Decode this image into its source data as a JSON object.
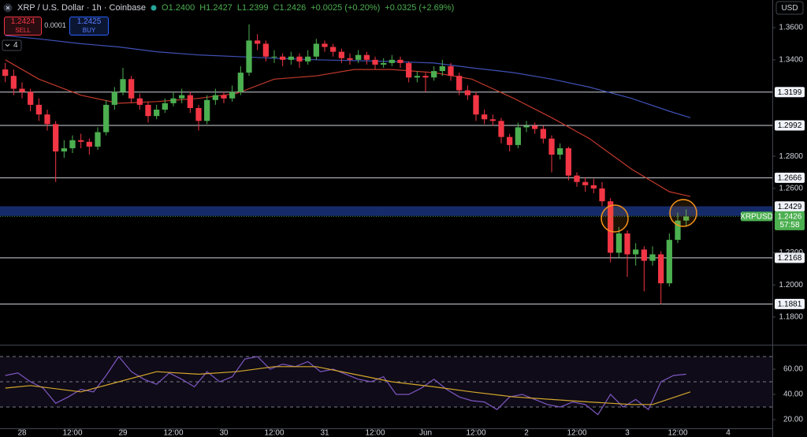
{
  "header": {
    "title": "XRP / U.S. Dollar · 1h · Coinbase",
    "open": "O1.2400",
    "high": "H1.2427",
    "low": "L1.2399",
    "close": "C1.2426",
    "change": "+0.0025 (+0.20%)",
    "change_day": "+0.0325 (+2.69%)"
  },
  "trade": {
    "sell_price": "1.2424",
    "sell": "SELL",
    "spread": "0.0001",
    "buy_price": "1.2425",
    "buy": "BUY"
  },
  "indicators_count": "4",
  "currency": "USD",
  "chart_data": [
    {
      "type": "candlestick",
      "x": [
        -4,
        -2,
        0,
        2,
        4,
        6,
        8,
        10,
        12,
        14,
        16,
        18,
        20,
        22,
        24,
        26,
        28,
        30,
        32,
        34,
        36,
        38,
        40,
        42,
        44,
        46,
        48,
        50,
        52,
        54,
        56,
        58,
        60,
        62,
        64,
        66,
        68,
        70,
        72,
        74,
        76,
        78,
        80,
        82,
        84,
        86,
        88,
        90,
        92,
        94,
        96,
        98,
        100,
        102,
        104,
        106,
        108,
        110,
        112,
        114,
        116,
        118,
        120,
        122,
        124,
        126,
        128,
        130,
        132,
        134,
        136,
        138,
        140,
        142,
        144,
        146,
        148,
        150,
        152,
        154,
        156,
        158
      ],
      "ohlc": [
        [
          1.334,
          1.338,
          1.326,
          1.33
        ],
        [
          1.33,
          1.334,
          1.318,
          1.322
        ],
        [
          1.322,
          1.326,
          1.316,
          1.32
        ],
        [
          1.32,
          1.322,
          1.308,
          1.312
        ],
        [
          1.312,
          1.316,
          1.302,
          1.306
        ],
        [
          1.306,
          1.309,
          1.296,
          1.3
        ],
        [
          1.3,
          1.302,
          1.264,
          1.283
        ],
        [
          1.283,
          1.29,
          1.279,
          1.285
        ],
        [
          1.285,
          1.293,
          1.282,
          1.29
        ],
        [
          1.29,
          1.294,
          1.285,
          1.289
        ],
        [
          1.289,
          1.291,
          1.281,
          1.286
        ],
        [
          1.286,
          1.298,
          1.284,
          1.295
        ],
        [
          1.295,
          1.315,
          1.293,
          1.312
        ],
        [
          1.312,
          1.323,
          1.309,
          1.32
        ],
        [
          1.32,
          1.335,
          1.318,
          1.328
        ],
        [
          1.328,
          1.33,
          1.313,
          1.316
        ],
        [
          1.316,
          1.319,
          1.309,
          1.312
        ],
        [
          1.312,
          1.314,
          1.301,
          1.305
        ],
        [
          1.305,
          1.312,
          1.303,
          1.309
        ],
        [
          1.309,
          1.316,
          1.307,
          1.313
        ],
        [
          1.313,
          1.32,
          1.311,
          1.316
        ],
        [
          1.316,
          1.322,
          1.313,
          1.318
        ],
        [
          1.318,
          1.32,
          1.307,
          1.31
        ],
        [
          1.31,
          1.312,
          1.296,
          1.302
        ],
        [
          1.302,
          1.318,
          1.3,
          1.315
        ],
        [
          1.315,
          1.322,
          1.312,
          1.318
        ],
        [
          1.318,
          1.32,
          1.313,
          1.316
        ],
        [
          1.316,
          1.324,
          1.314,
          1.32
        ],
        [
          1.32,
          1.336,
          1.318,
          1.332
        ],
        [
          1.332,
          1.362,
          1.33,
          1.352
        ],
        [
          1.352,
          1.356,
          1.346,
          1.35
        ],
        [
          1.35,
          1.352,
          1.339,
          1.342
        ],
        [
          1.342,
          1.346,
          1.338,
          1.342
        ],
        [
          1.342,
          1.344,
          1.336,
          1.34
        ],
        [
          1.34,
          1.345,
          1.337,
          1.342
        ],
        [
          1.342,
          1.344,
          1.335,
          1.339
        ],
        [
          1.339,
          1.346,
          1.337,
          1.342
        ],
        [
          1.342,
          1.353,
          1.34,
          1.35
        ],
        [
          1.35,
          1.352,
          1.345,
          1.348
        ],
        [
          1.348,
          1.35,
          1.342,
          1.345
        ],
        [
          1.345,
          1.347,
          1.338,
          1.341
        ],
        [
          1.341,
          1.344,
          1.337,
          1.34
        ],
        [
          1.34,
          1.346,
          1.338,
          1.343
        ],
        [
          1.343,
          1.345,
          1.337,
          1.34
        ],
        [
          1.34,
          1.342,
          1.334,
          1.337
        ],
        [
          1.337,
          1.341,
          1.335,
          1.338
        ],
        [
          1.338,
          1.343,
          1.336,
          1.34
        ],
        [
          1.34,
          1.342,
          1.335,
          1.338
        ],
        [
          1.338,
          1.339,
          1.326,
          1.329
        ],
        [
          1.329,
          1.333,
          1.326,
          1.33
        ],
        [
          1.33,
          1.332,
          1.32,
          1.329
        ],
        [
          1.329,
          1.336,
          1.327,
          1.333
        ],
        [
          1.333,
          1.34,
          1.33,
          1.336
        ],
        [
          1.336,
          1.338,
          1.327,
          1.33
        ],
        [
          1.33,
          1.332,
          1.318,
          1.321
        ],
        [
          1.321,
          1.324,
          1.315,
          1.318
        ],
        [
          1.318,
          1.32,
          1.302,
          1.306
        ],
        [
          1.306,
          1.309,
          1.3,
          1.303
        ],
        [
          1.303,
          1.306,
          1.299,
          1.302
        ],
        [
          1.302,
          1.304,
          1.288,
          1.292
        ],
        [
          1.292,
          1.294,
          1.283,
          1.287
        ],
        [
          1.287,
          1.301,
          1.285,
          1.298
        ],
        [
          1.298,
          1.302,
          1.295,
          1.299
        ],
        [
          1.299,
          1.301,
          1.294,
          1.297
        ],
        [
          1.297,
          1.299,
          1.288,
          1.291
        ],
        [
          1.291,
          1.293,
          1.27,
          1.281
        ],
        [
          1.281,
          1.288,
          1.278,
          1.285
        ],
        [
          1.285,
          1.286,
          1.265,
          1.268
        ],
        [
          1.268,
          1.27,
          1.261,
          1.264
        ],
        [
          1.264,
          1.267,
          1.258,
          1.262
        ],
        [
          1.262,
          1.266,
          1.257,
          1.26
        ],
        [
          1.26,
          1.264,
          1.249,
          1.252
        ],
        [
          1.252,
          1.254,
          1.214,
          1.22
        ],
        [
          1.22,
          1.236,
          1.217,
          1.232
        ],
        [
          1.232,
          1.234,
          1.205,
          1.219
        ],
        [
          1.219,
          1.226,
          1.212,
          1.222
        ],
        [
          1.222,
          1.224,
          1.196,
          1.215
        ],
        [
          1.215,
          1.224,
          1.212,
          1.219
        ],
        [
          1.219,
          1.221,
          1.188,
          1.201
        ],
        [
          1.201,
          1.232,
          1.199,
          1.228
        ],
        [
          1.228,
          1.245,
          1.226,
          1.24
        ],
        [
          1.24,
          1.247,
          1.236,
          1.2426
        ]
      ],
      "up_color": "#4caf50",
      "down_color": "#f23645",
      "xlim": [
        -5.25,
        178.5
      ],
      "xticks": [
        {
          "value": 0,
          "label": "28"
        },
        {
          "value": 12,
          "label": "12:00"
        },
        {
          "value": 24,
          "label": "29"
        },
        {
          "value": 36,
          "label": "12:00"
        },
        {
          "value": 48,
          "label": "30"
        },
        {
          "value": 60,
          "label": "12:00"
        },
        {
          "value": 72,
          "label": "31"
        },
        {
          "value": 84,
          "label": "12:00"
        },
        {
          "value": 96,
          "label": "Jun"
        },
        {
          "value": 108,
          "label": "12:00"
        },
        {
          "value": 120,
          "label": "2"
        },
        {
          "value": 132,
          "label": "12:00"
        },
        {
          "value": 144,
          "label": "3"
        },
        {
          "value": 156,
          "label": "12:00"
        },
        {
          "value": 168,
          "label": "4"
        }
      ],
      "ylim": [
        1.1628,
        1.3772
      ],
      "yticks": [
        {
          "value": 1.36,
          "label": "1.3600"
        },
        {
          "value": 1.34,
          "label": "1.3400"
        },
        {
          "value": 1.28,
          "label": "1.2800"
        },
        {
          "value": 1.26,
          "label": "1.2600"
        },
        {
          "value": 1.22,
          "label": "1.2200"
        },
        {
          "value": 1.2,
          "label": "1.2000"
        },
        {
          "value": 1.18,
          "label": "1.1800"
        }
      ],
      "levels": [
        1.3199,
        1.2992,
        1.2666,
        1.2168,
        1.1881
      ],
      "zone": {
        "low": 1.2429,
        "high": 1.2489,
        "color": "#1c3a8c"
      },
      "series": [
        {
          "color": "#c0392b",
          "x": [
            -4,
            4,
            14,
            23,
            32,
            42,
            51,
            60,
            70,
            79,
            88,
            98,
            107,
            117,
            126,
            135,
            145,
            154,
            159
          ],
          "values": [
            1.34,
            1.328,
            1.318,
            1.313,
            1.314,
            1.316,
            1.319,
            1.328,
            1.33,
            1.334,
            1.334,
            1.332,
            1.328,
            1.316,
            1.304,
            1.291,
            1.272,
            1.258,
            1.255
          ]
        },
        {
          "color": "#3f51b5",
          "x": [
            -4,
            4,
            14,
            23,
            32,
            42,
            51,
            60,
            70,
            79,
            88,
            98,
            107,
            117,
            126,
            135,
            145,
            154,
            159
          ],
          "values": [
            1.355,
            1.353,
            1.35,
            1.348,
            1.345,
            1.343,
            1.342,
            1.341,
            1.34,
            1.3395,
            1.339,
            1.338,
            1.335,
            1.332,
            1.328,
            1.323,
            1.316,
            1.308,
            1.304
          ]
        }
      ],
      "last": {
        "symbol": "XRPUSD",
        "price": 1.2426,
        "countdown": "57:58",
        "color": "#4caf50"
      }
    },
    {
      "type": "line",
      "xlim": [
        -5.25,
        178.5
      ],
      "ylim": [
        13.1,
        77.5
      ],
      "yticks": [
        {
          "value": 60,
          "label": "60.00"
        },
        {
          "value": 40,
          "label": "40.00"
        },
        {
          "value": 20,
          "label": "20.00"
        }
      ],
      "levels": [
        70,
        50,
        30
      ],
      "series": [
        {
          "color": "#7e57c2",
          "x": [
            -4,
            -1,
            2,
            5,
            8,
            11,
            14,
            17,
            20,
            23,
            26,
            29,
            32,
            35,
            38,
            41,
            44,
            47,
            50,
            53,
            56,
            59,
            62,
            65,
            68,
            71,
            74,
            77,
            80,
            83,
            86,
            89,
            92,
            95,
            98,
            101,
            104,
            107,
            110,
            113,
            116,
            119,
            122,
            125,
            128,
            131,
            134,
            137,
            140,
            143,
            146,
            149,
            152,
            155,
            158
          ],
          "values": [
            55,
            57,
            50,
            45,
            33,
            38,
            44,
            42,
            55,
            70,
            58,
            52,
            48,
            57,
            52,
            46,
            58,
            50,
            54,
            68,
            70,
            60,
            64,
            62,
            66,
            58,
            60,
            56,
            52,
            50,
            54,
            40,
            40,
            45,
            52,
            44,
            38,
            35,
            34,
            28,
            38,
            40,
            36,
            32,
            30,
            34,
            32,
            24,
            40,
            30,
            36,
            28,
            50,
            55,
            56
          ]
        },
        {
          "color": "#d4a72c",
          "x": [
            -4,
            2,
            14,
            23,
            32,
            42,
            51,
            60,
            70,
            79,
            88,
            98,
            107,
            117,
            126,
            135,
            145,
            150,
            159
          ],
          "values": [
            45,
            47,
            42,
            50,
            58,
            56,
            58,
            62,
            62,
            56,
            50,
            46,
            42,
            38,
            36,
            34,
            32,
            32,
            42
          ]
        }
      ]
    }
  ]
}
